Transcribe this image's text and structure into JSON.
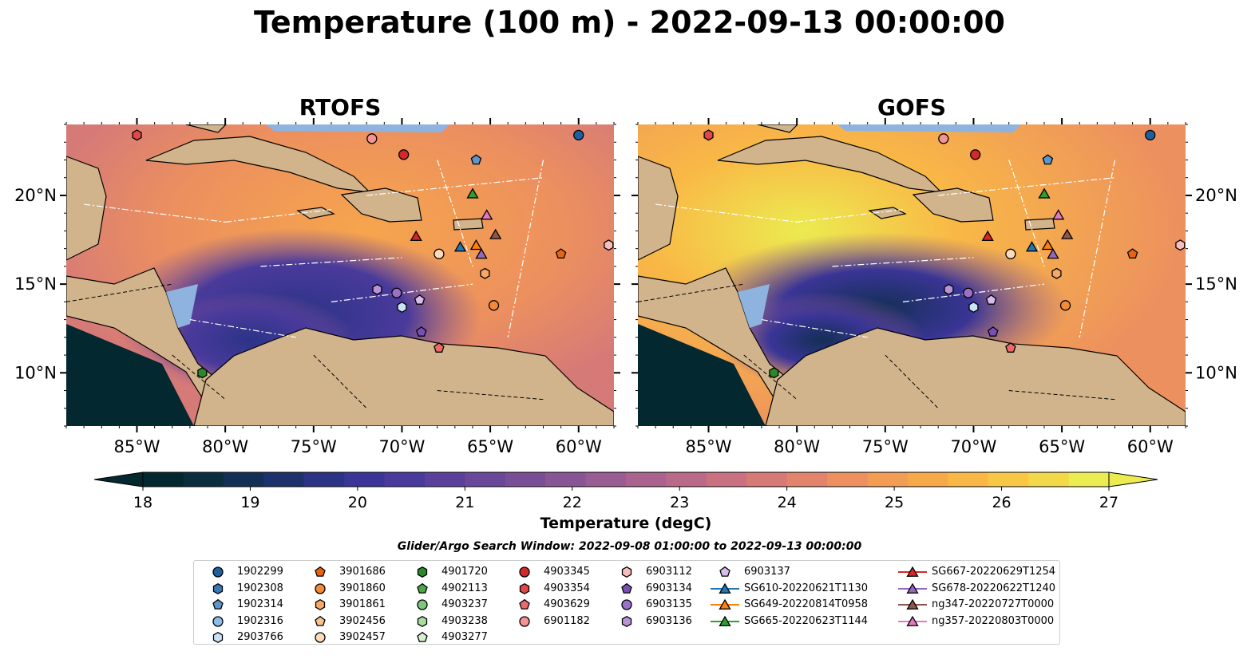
{
  "title": "Temperature (100 m) - 2022-09-13 00:00:00",
  "chart_data": {
    "type": "heatmap",
    "panels": [
      {
        "name": "RTOFS"
      },
      {
        "name": "GOFS"
      }
    ],
    "lon_range": [
      -89,
      -58
    ],
    "lat_range": [
      7,
      24
    ],
    "x_ticks": [
      -85,
      -80,
      -75,
      -70,
      -65,
      -60
    ],
    "x_tick_labels": [
      "85°W",
      "80°W",
      "75°W",
      "70°W",
      "65°W",
      "60°W"
    ],
    "y_ticks": [
      10,
      15,
      20
    ],
    "y_tick_labels": [
      "10°N",
      "15°N",
      "20°N"
    ],
    "colorbar": {
      "label": "Temperature (degC)",
      "min": 18,
      "max": 27,
      "ticks": [
        18,
        19,
        20,
        21,
        22,
        23,
        24,
        25,
        26,
        27
      ],
      "extend": "both",
      "colors": [
        "#04282f",
        "#0a2d40",
        "#132f55",
        "#1d316d",
        "#2b3387",
        "#3a3596",
        "#4a3a9b",
        "#5a409b",
        "#6a4799",
        "#7a4e97",
        "#8a5596",
        "#9a5c93",
        "#aa638e",
        "#ba6a88",
        "#c97181",
        "#d67a78",
        "#e2846c",
        "#ec905f",
        "#f39c53",
        "#f7a94a",
        "#f9b846",
        "#f8c845",
        "#f3d949",
        "#eceb50"
      ]
    },
    "search_window": "Glider/Argo Search Window: 2022-09-08 01:00:00 to 2022-09-13 00:00:00",
    "legend": [
      {
        "label": "1902299",
        "marker": "circle",
        "color": "#1f5fa0"
      },
      {
        "label": "1902308",
        "marker": "hexagon",
        "color": "#3b78b8"
      },
      {
        "label": "1902314",
        "marker": "pentagon",
        "color": "#5b96cf"
      },
      {
        "label": "1902316",
        "marker": "circle",
        "color": "#8cbde6"
      },
      {
        "label": "2903766",
        "marker": "hexagon",
        "color": "#c9e2f4"
      },
      {
        "label": "3901686",
        "marker": "pentagon",
        "color": "#e8650f"
      },
      {
        "label": "3901860",
        "marker": "circle",
        "color": "#f48a36"
      },
      {
        "label": "3901861",
        "marker": "hexagon",
        "color": "#f6a866"
      },
      {
        "label": "3902456",
        "marker": "pentagon",
        "color": "#f8c38f"
      },
      {
        "label": "3902457",
        "marker": "circle",
        "color": "#fbdcba"
      },
      {
        "label": "4901720",
        "marker": "hexagon",
        "color": "#2a8a2a"
      },
      {
        "label": "4902113",
        "marker": "pentagon",
        "color": "#4aa84a"
      },
      {
        "label": "4903237",
        "marker": "circle",
        "color": "#7cc87c"
      },
      {
        "label": "4903238",
        "marker": "hexagon",
        "color": "#a8dca0"
      },
      {
        "label": "4903277",
        "marker": "pentagon",
        "color": "#d8f0d0"
      },
      {
        "label": "4903345",
        "marker": "circle",
        "color": "#d22a2a"
      },
      {
        "label": "4903354",
        "marker": "hexagon",
        "color": "#e04848"
      },
      {
        "label": "4903629",
        "marker": "pentagon",
        "color": "#ec6a6a"
      },
      {
        "label": "6901182",
        "marker": "circle",
        "color": "#f59393"
      },
      {
        "label": "6903112",
        "marker": "hexagon",
        "color": "#f9bcbc"
      },
      {
        "label": "6903134",
        "marker": "pentagon",
        "color": "#7a4fb5"
      },
      {
        "label": "6903135",
        "marker": "circle",
        "color": "#9a70c8"
      },
      {
        "label": "6903136",
        "marker": "hexagon",
        "color": "#b893d8"
      },
      {
        "label": "6903137",
        "marker": "pentagon",
        "color": "#d8bdec"
      },
      {
        "label": "SG610-20220621T1130",
        "marker": "triangle",
        "color": "#1f77b4"
      },
      {
        "label": "SG649-20220814T0958",
        "marker": "triangle",
        "color": "#ff7f0e"
      },
      {
        "label": "SG665-20220623T1144",
        "marker": "triangle",
        "color": "#2ca02c"
      },
      {
        "label": "SG667-20220629T1254",
        "marker": "triangle",
        "color": "#d62728"
      },
      {
        "label": "SG678-20220622T1240",
        "marker": "triangle",
        "color": "#9467bd"
      },
      {
        "label": "ng347-20220727T0000",
        "marker": "triangle",
        "color": "#8c564b"
      },
      {
        "label": "ng357-20220803T0000",
        "marker": "triangle",
        "color": "#e377c2"
      }
    ],
    "markers": [
      {
        "label": "1902299",
        "lon": -60.0,
        "lat": 23.4
      },
      {
        "label": "1902314",
        "lon": -65.8,
        "lat": 22.0
      },
      {
        "label": "3901686",
        "lon": -61.0,
        "lat": 16.7
      },
      {
        "label": "3901860",
        "lon": -64.8,
        "lat": 13.8
      },
      {
        "label": "3901861",
        "lon": -65.3,
        "lat": 15.6
      },
      {
        "label": "3902457",
        "lon": -67.9,
        "lat": 16.7
      },
      {
        "label": "4901720",
        "lon": -81.3,
        "lat": 10.0
      },
      {
        "label": "4903345",
        "lon": -69.9,
        "lat": 22.3
      },
      {
        "label": "4903354",
        "lon": -85.0,
        "lat": 23.4
      },
      {
        "label": "4903629",
        "lon": -67.9,
        "lat": 11.4
      },
      {
        "label": "6901182",
        "lon": -71.7,
        "lat": 23.2
      },
      {
        "label": "6903112",
        "lon": -58.3,
        "lat": 17.2
      },
      {
        "label": "2903766",
        "lon": -70.0,
        "lat": 13.7
      },
      {
        "label": "6903134",
        "lon": -68.9,
        "lat": 12.3
      },
      {
        "label": "6903135",
        "lon": -70.3,
        "lat": 14.5
      },
      {
        "label": "6903136",
        "lon": -71.4,
        "lat": 14.7
      },
      {
        "label": "6903137",
        "lon": -69.0,
        "lat": 14.1
      },
      {
        "label": "SG610-20220621T1130",
        "lon": -66.7,
        "lat": 17.1
      },
      {
        "label": "SG649-20220814T0958",
        "lon": -65.8,
        "lat": 17.2
      },
      {
        "label": "SG665-20220623T1144",
        "lon": -66.0,
        "lat": 20.1
      },
      {
        "label": "SG667-20220629T1254",
        "lon": -69.2,
        "lat": 17.7
      },
      {
        "label": "SG678-20220622T1240",
        "lon": -65.5,
        "lat": 16.7
      },
      {
        "label": "ng347-20220727T0000",
        "lon": -64.7,
        "lat": 17.8
      },
      {
        "label": "ng357-20220803T0000",
        "lon": -65.2,
        "lat": 18.9
      }
    ]
  }
}
